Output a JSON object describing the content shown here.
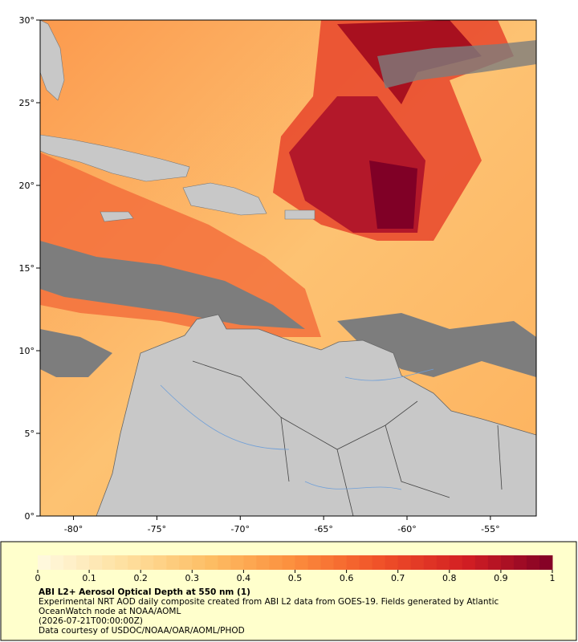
{
  "map": {
    "xlim": [
      -82,
      -52.25
    ],
    "ylim": [
      0,
      30
    ],
    "xticks": [
      {
        "value": -80,
        "label": "-80°"
      },
      {
        "value": -75,
        "label": "-75°"
      },
      {
        "value": -70,
        "label": "-70°"
      },
      {
        "value": -65,
        "label": "-65°"
      },
      {
        "value": -60,
        "label": "-60°"
      },
      {
        "value": -55,
        "label": "-55°"
      }
    ],
    "yticks": [
      {
        "value": 0,
        "label": "0°"
      },
      {
        "value": 5,
        "label": "5°"
      },
      {
        "value": 10,
        "label": "10°"
      },
      {
        "value": 15,
        "label": "15°"
      },
      {
        "value": 20,
        "label": "20°"
      },
      {
        "value": 25,
        "label": "25°"
      },
      {
        "value": 30,
        "label": "30°"
      }
    ]
  },
  "colorbar": {
    "lim": [
      0,
      1
    ],
    "ticks": [
      0,
      0.1,
      0.2,
      0.3,
      0.4,
      0.5,
      0.6,
      0.7,
      0.8,
      0.9,
      1
    ]
  },
  "caption": {
    "title": "ABI L2+ Aerosol Optical Depth at 550 nm (1)",
    "lines": [
      "Experimental NRT AOD daily composite created from ABI L2 data from GOES-19. Fields generated by Atlantic OceanWatch node at NOAA/AOML",
      "(2026-07-21T00:00:00Z)",
      "Data courtesy of USDOC/NOAA/OAR/AOML/PHOD"
    ]
  }
}
